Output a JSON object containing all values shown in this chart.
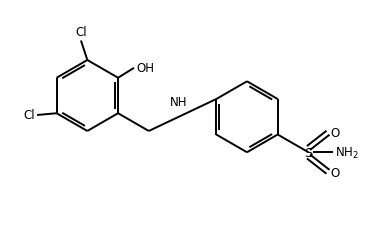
{
  "bg": "#ffffff",
  "lc": "#000000",
  "lw": 1.4,
  "fs": 8.5,
  "figsize": [
    3.84,
    2.32
  ],
  "dpi": 100,
  "xlim": [
    0,
    10.5
  ],
  "ylim": [
    0,
    6.5
  ]
}
